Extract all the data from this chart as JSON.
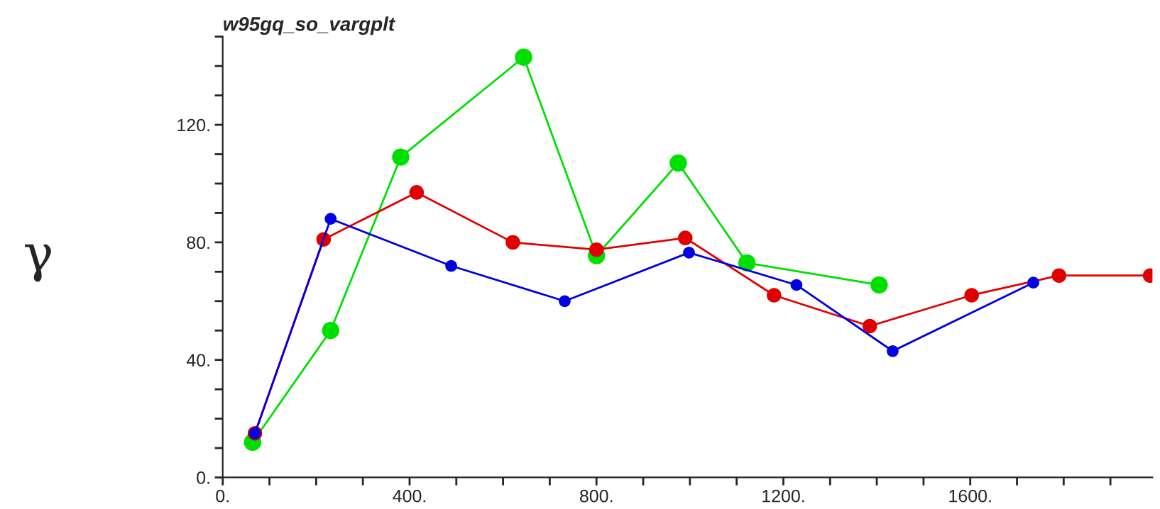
{
  "chart_data": {
    "type": "line",
    "title": "w95gq_so_vargplt",
    "ylabel": "γ",
    "xlim": [
      0,
      1990
    ],
    "ylim": [
      0,
      150
    ],
    "xticks": [
      {
        "value": 0,
        "label": "0."
      },
      {
        "value": 100,
        "label": null
      },
      {
        "value": 200,
        "label": null
      },
      {
        "value": 300,
        "label": null
      },
      {
        "value": 400,
        "label": "400."
      },
      {
        "value": 500,
        "label": null
      },
      {
        "value": 600,
        "label": null
      },
      {
        "value": 700,
        "label": null
      },
      {
        "value": 800,
        "label": "800."
      },
      {
        "value": 900,
        "label": null
      },
      {
        "value": 1000,
        "label": null
      },
      {
        "value": 1100,
        "label": null
      },
      {
        "value": 1200,
        "label": "1200."
      },
      {
        "value": 1300,
        "label": null
      },
      {
        "value": 1400,
        "label": null
      },
      {
        "value": 1500,
        "label": null
      },
      {
        "value": 1600,
        "label": "1600."
      },
      {
        "value": 1700,
        "label": null
      },
      {
        "value": 1800,
        "label": null
      },
      {
        "value": 1900,
        "label": null
      }
    ],
    "yticks": [
      {
        "value": 0,
        "label": "0."
      },
      {
        "value": 10,
        "label": null
      },
      {
        "value": 20,
        "label": null
      },
      {
        "value": 30,
        "label": null
      },
      {
        "value": 40,
        "label": "40."
      },
      {
        "value": 50,
        "label": null
      },
      {
        "value": 60,
        "label": null
      },
      {
        "value": 70,
        "label": null
      },
      {
        "value": 80,
        "label": "80."
      },
      {
        "value": 90,
        "label": null
      },
      {
        "value": 100,
        "label": null
      },
      {
        "value": 110,
        "label": null
      },
      {
        "value": 120,
        "label": "120."
      },
      {
        "value": 130,
        "label": null
      },
      {
        "value": 140,
        "label": null
      },
      {
        "value": 150,
        "label": null
      }
    ],
    "grid": false,
    "legend": false,
    "marker": "circle",
    "line_style": "solid",
    "series": [
      {
        "color": "#00e000",
        "x": [
          64,
          231,
          381,
          644,
          800,
          975,
          1122,
          1405
        ],
        "values": [
          12,
          50,
          109,
          143,
          75.5,
          107,
          73,
          65.5
        ]
      },
      {
        "color": "#e00000",
        "x": [
          69,
          216,
          415,
          621,
          800,
          990,
          1180,
          1385,
          1603,
          1790,
          1985
        ],
        "values": [
          15,
          81,
          97,
          80,
          77.5,
          81.5,
          62,
          51.5,
          62,
          68.7,
          68.7
        ]
      },
      {
        "color": "#0000e0",
        "x": [
          69,
          231,
          489,
          732,
          998,
          1228,
          1434,
          1735
        ],
        "values": [
          15,
          88,
          72,
          60,
          76.5,
          65.5,
          43,
          66.3
        ]
      }
    ]
  }
}
